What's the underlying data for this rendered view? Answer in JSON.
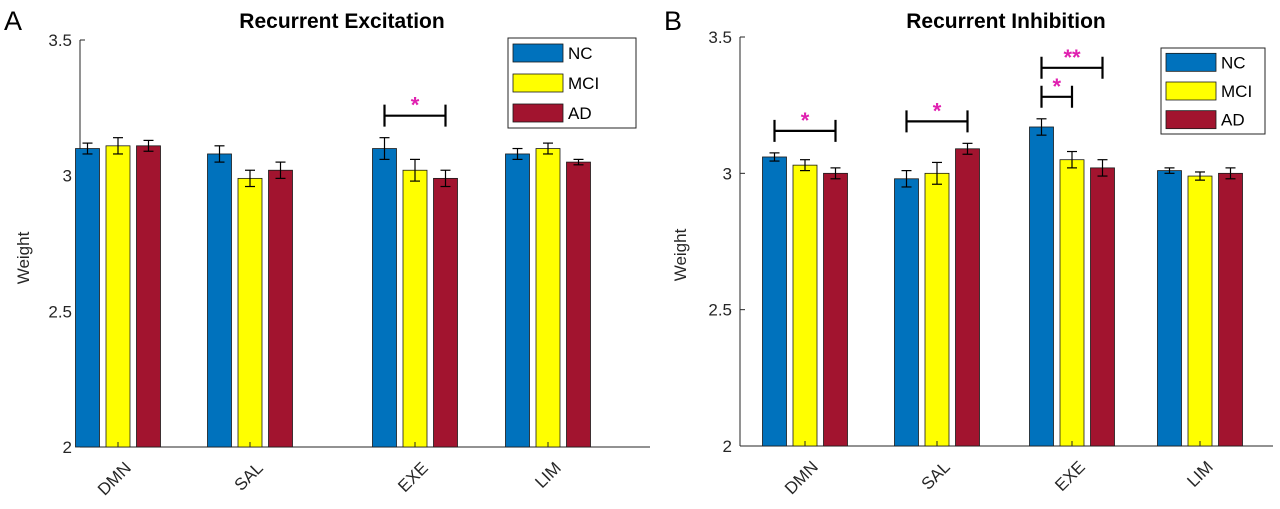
{
  "colors": {
    "NC": "#0072BD",
    "MCI": "#FFFF00",
    "AD": "#A2142F",
    "significance": "#E020B0"
  },
  "chart_data": [
    {
      "type": "bar",
      "panel_letter": "A",
      "title": "Recurrent Excitation",
      "ylabel": "Weight",
      "xlabel": "",
      "ylim": [
        2,
        3.5
      ],
      "yticks": [
        "2",
        "2.5",
        "3",
        "3.5"
      ],
      "categories": [
        "DMN",
        "SAL",
        "EXE",
        "LIM"
      ],
      "legend": {
        "position": "top-right",
        "entries": [
          "NC",
          "MCI",
          "AD"
        ]
      },
      "series": [
        {
          "name": "NC",
          "values": [
            3.1,
            3.08,
            3.1,
            3.08
          ],
          "errors": [
            0.02,
            0.03,
            0.04,
            0.02
          ]
        },
        {
          "name": "MCI",
          "values": [
            3.11,
            2.99,
            3.02,
            3.1
          ],
          "errors": [
            0.03,
            0.03,
            0.04,
            0.02
          ]
        },
        {
          "name": "AD",
          "values": [
            3.11,
            3.02,
            2.99,
            3.05
          ],
          "errors": [
            0.02,
            0.03,
            0.03,
            0.01
          ]
        }
      ],
      "significance": [
        {
          "category": "EXE",
          "from": "NC",
          "to": "AD",
          "label": "*"
        }
      ]
    },
    {
      "type": "bar",
      "panel_letter": "B",
      "title": "Recurrent Inhibition",
      "ylabel": "Weight",
      "xlabel": "",
      "ylim": [
        2,
        3.5
      ],
      "yticks": [
        "2",
        "2.5",
        "3",
        "3.5"
      ],
      "categories": [
        "DMN",
        "SAL",
        "EXE",
        "LIM"
      ],
      "legend": {
        "position": "top-right",
        "entries": [
          "NC",
          "MCI",
          "AD"
        ]
      },
      "series": [
        {
          "name": "NC",
          "values": [
            3.06,
            2.98,
            3.17,
            3.01
          ],
          "errors": [
            0.015,
            0.03,
            0.03,
            0.01
          ]
        },
        {
          "name": "MCI",
          "values": [
            3.03,
            3.0,
            3.05,
            2.99
          ],
          "errors": [
            0.02,
            0.04,
            0.03,
            0.015
          ]
        },
        {
          "name": "AD",
          "values": [
            3.0,
            3.09,
            3.02,
            3.0
          ],
          "errors": [
            0.02,
            0.02,
            0.03,
            0.02
          ]
        }
      ],
      "significance": [
        {
          "category": "DMN",
          "from": "NC",
          "to": "AD",
          "label": "*"
        },
        {
          "category": "SAL",
          "from": "NC",
          "to": "AD",
          "label": "*"
        },
        {
          "category": "EXE",
          "from": "NC",
          "to": "MCI",
          "label": "*"
        },
        {
          "category": "EXE",
          "from": "NC",
          "to": "AD",
          "label": "**"
        }
      ]
    }
  ]
}
